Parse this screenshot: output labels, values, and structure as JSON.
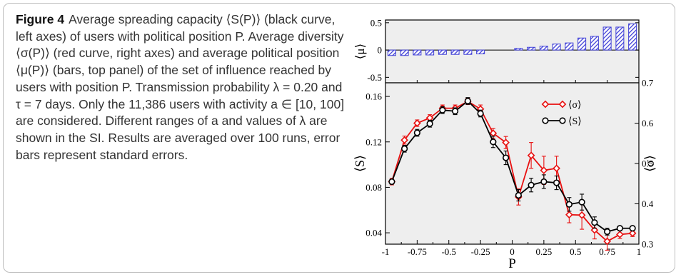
{
  "caption": {
    "label": "Figure 4",
    "text": "Average spreading capacity ⟨S(P)⟩ (black curve, left axes) of users with political position P. Average diversity ⟨σ(P)⟩ (red curve, right axes) and average political position ⟨μ(P)⟩ (bars, top panel) of the set of influence reached by users with position P. Transmission probability λ = 0.20 and τ = 7 days. Only the 11,386 users with activity a ∈ [10, 100] are considered. Different ranges of a and values of λ are shown in the SI. Results are averaged over 100 runs, error bars represent standard errors."
  },
  "colors": {
    "bars": "#3f3fd6",
    "sigma": "#e81010",
    "S": "#000000",
    "panel_bg": "#eeeeee"
  },
  "chart_data": [
    {
      "type": "bar",
      "panel": "top",
      "ylabel": "⟨μ⟩",
      "ylim": [
        -0.6,
        0.55
      ],
      "yticks": [
        -0.5,
        0,
        0.5
      ],
      "ytick_labels": [
        "-0.5",
        "0",
        "0.5"
      ],
      "x": [
        -0.95,
        -0.85,
        -0.75,
        -0.65,
        -0.55,
        -0.45,
        -0.35,
        -0.25,
        0.05,
        0.15,
        0.25,
        0.35,
        0.45,
        0.55,
        0.65,
        0.75,
        0.85,
        0.95
      ],
      "values": [
        -0.1,
        -0.1,
        -0.09,
        -0.09,
        -0.08,
        -0.08,
        -0.08,
        -0.07,
        0.03,
        0.05,
        0.07,
        0.11,
        0.13,
        0.22,
        0.25,
        0.42,
        0.42,
        0.48
      ],
      "hatched": true
    },
    {
      "type": "line",
      "panel": "bottom",
      "xlabel": "P",
      "ylabel": "⟨S⟩",
      "y2label": "⟨σ⟩",
      "xlim": [
        -1,
        1
      ],
      "ylim": [
        0.03,
        0.172
      ],
      "y2lim": [
        0.3,
        0.7
      ],
      "xticks": [
        -1,
        -0.75,
        -0.5,
        -0.25,
        0,
        0.25,
        0.5,
        0.75,
        1
      ],
      "xtick_labels": [
        "-1",
        "-0.75",
        "-0.5",
        "-0.25",
        "0",
        "0.25",
        "0.5",
        "0.75",
        "1"
      ],
      "yticks": [
        0.04,
        0.08,
        0.12,
        0.16
      ],
      "ytick_labels": [
        "0.04",
        "0.08",
        "0.12",
        "0.16"
      ],
      "y2ticks": [
        0.3,
        0.4,
        0.5,
        0.6,
        0.7
      ],
      "y2tick_labels": [
        "0.3",
        "0.4",
        "0.5",
        "0.6",
        "0.7"
      ],
      "legend_position": "top-right",
      "series": [
        {
          "name": "⟨σ⟩",
          "axis": "right",
          "marker": "diamond",
          "x": [
            -0.95,
            -0.85,
            -0.75,
            -0.65,
            -0.55,
            -0.45,
            -0.35,
            -0.25,
            -0.15,
            -0.05,
            0.05,
            0.15,
            0.25,
            0.35,
            0.45,
            0.55,
            0.65,
            0.75,
            0.85,
            0.95
          ],
          "values": [
            0.455,
            0.558,
            0.6,
            0.613,
            0.637,
            0.637,
            0.654,
            0.635,
            0.575,
            0.552,
            0.417,
            0.52,
            0.483,
            0.488,
            0.373,
            0.372,
            0.335,
            0.307,
            0.324,
            0.327
          ],
          "errors": [
            0.008,
            0.01,
            0.008,
            0.008,
            0.008,
            0.008,
            0.008,
            0.01,
            0.012,
            0.015,
            0.02,
            0.032,
            0.035,
            0.03,
            0.02,
            0.035,
            0.022,
            0.022,
            0.01,
            0.008
          ]
        },
        {
          "name": "⟨S⟩",
          "axis": "left",
          "marker": "circle",
          "x": [
            -0.95,
            -0.85,
            -0.75,
            -0.65,
            -0.55,
            -0.45,
            -0.35,
            -0.25,
            -0.15,
            -0.05,
            0.05,
            0.15,
            0.25,
            0.35,
            0.45,
            0.55,
            0.65,
            0.75,
            0.85,
            0.95
          ],
          "values": [
            0.085,
            0.114,
            0.128,
            0.136,
            0.148,
            0.147,
            0.156,
            0.145,
            0.12,
            0.106,
            0.073,
            0.082,
            0.085,
            0.084,
            0.065,
            0.067,
            0.049,
            0.041,
            0.044,
            0.044
          ],
          "errors": [
            0.002,
            0.003,
            0.003,
            0.003,
            0.003,
            0.003,
            0.003,
            0.003,
            0.005,
            0.006,
            0.005,
            0.006,
            0.006,
            0.006,
            0.006,
            0.007,
            0.005,
            0.003,
            0.002,
            0.002
          ]
        }
      ]
    }
  ]
}
